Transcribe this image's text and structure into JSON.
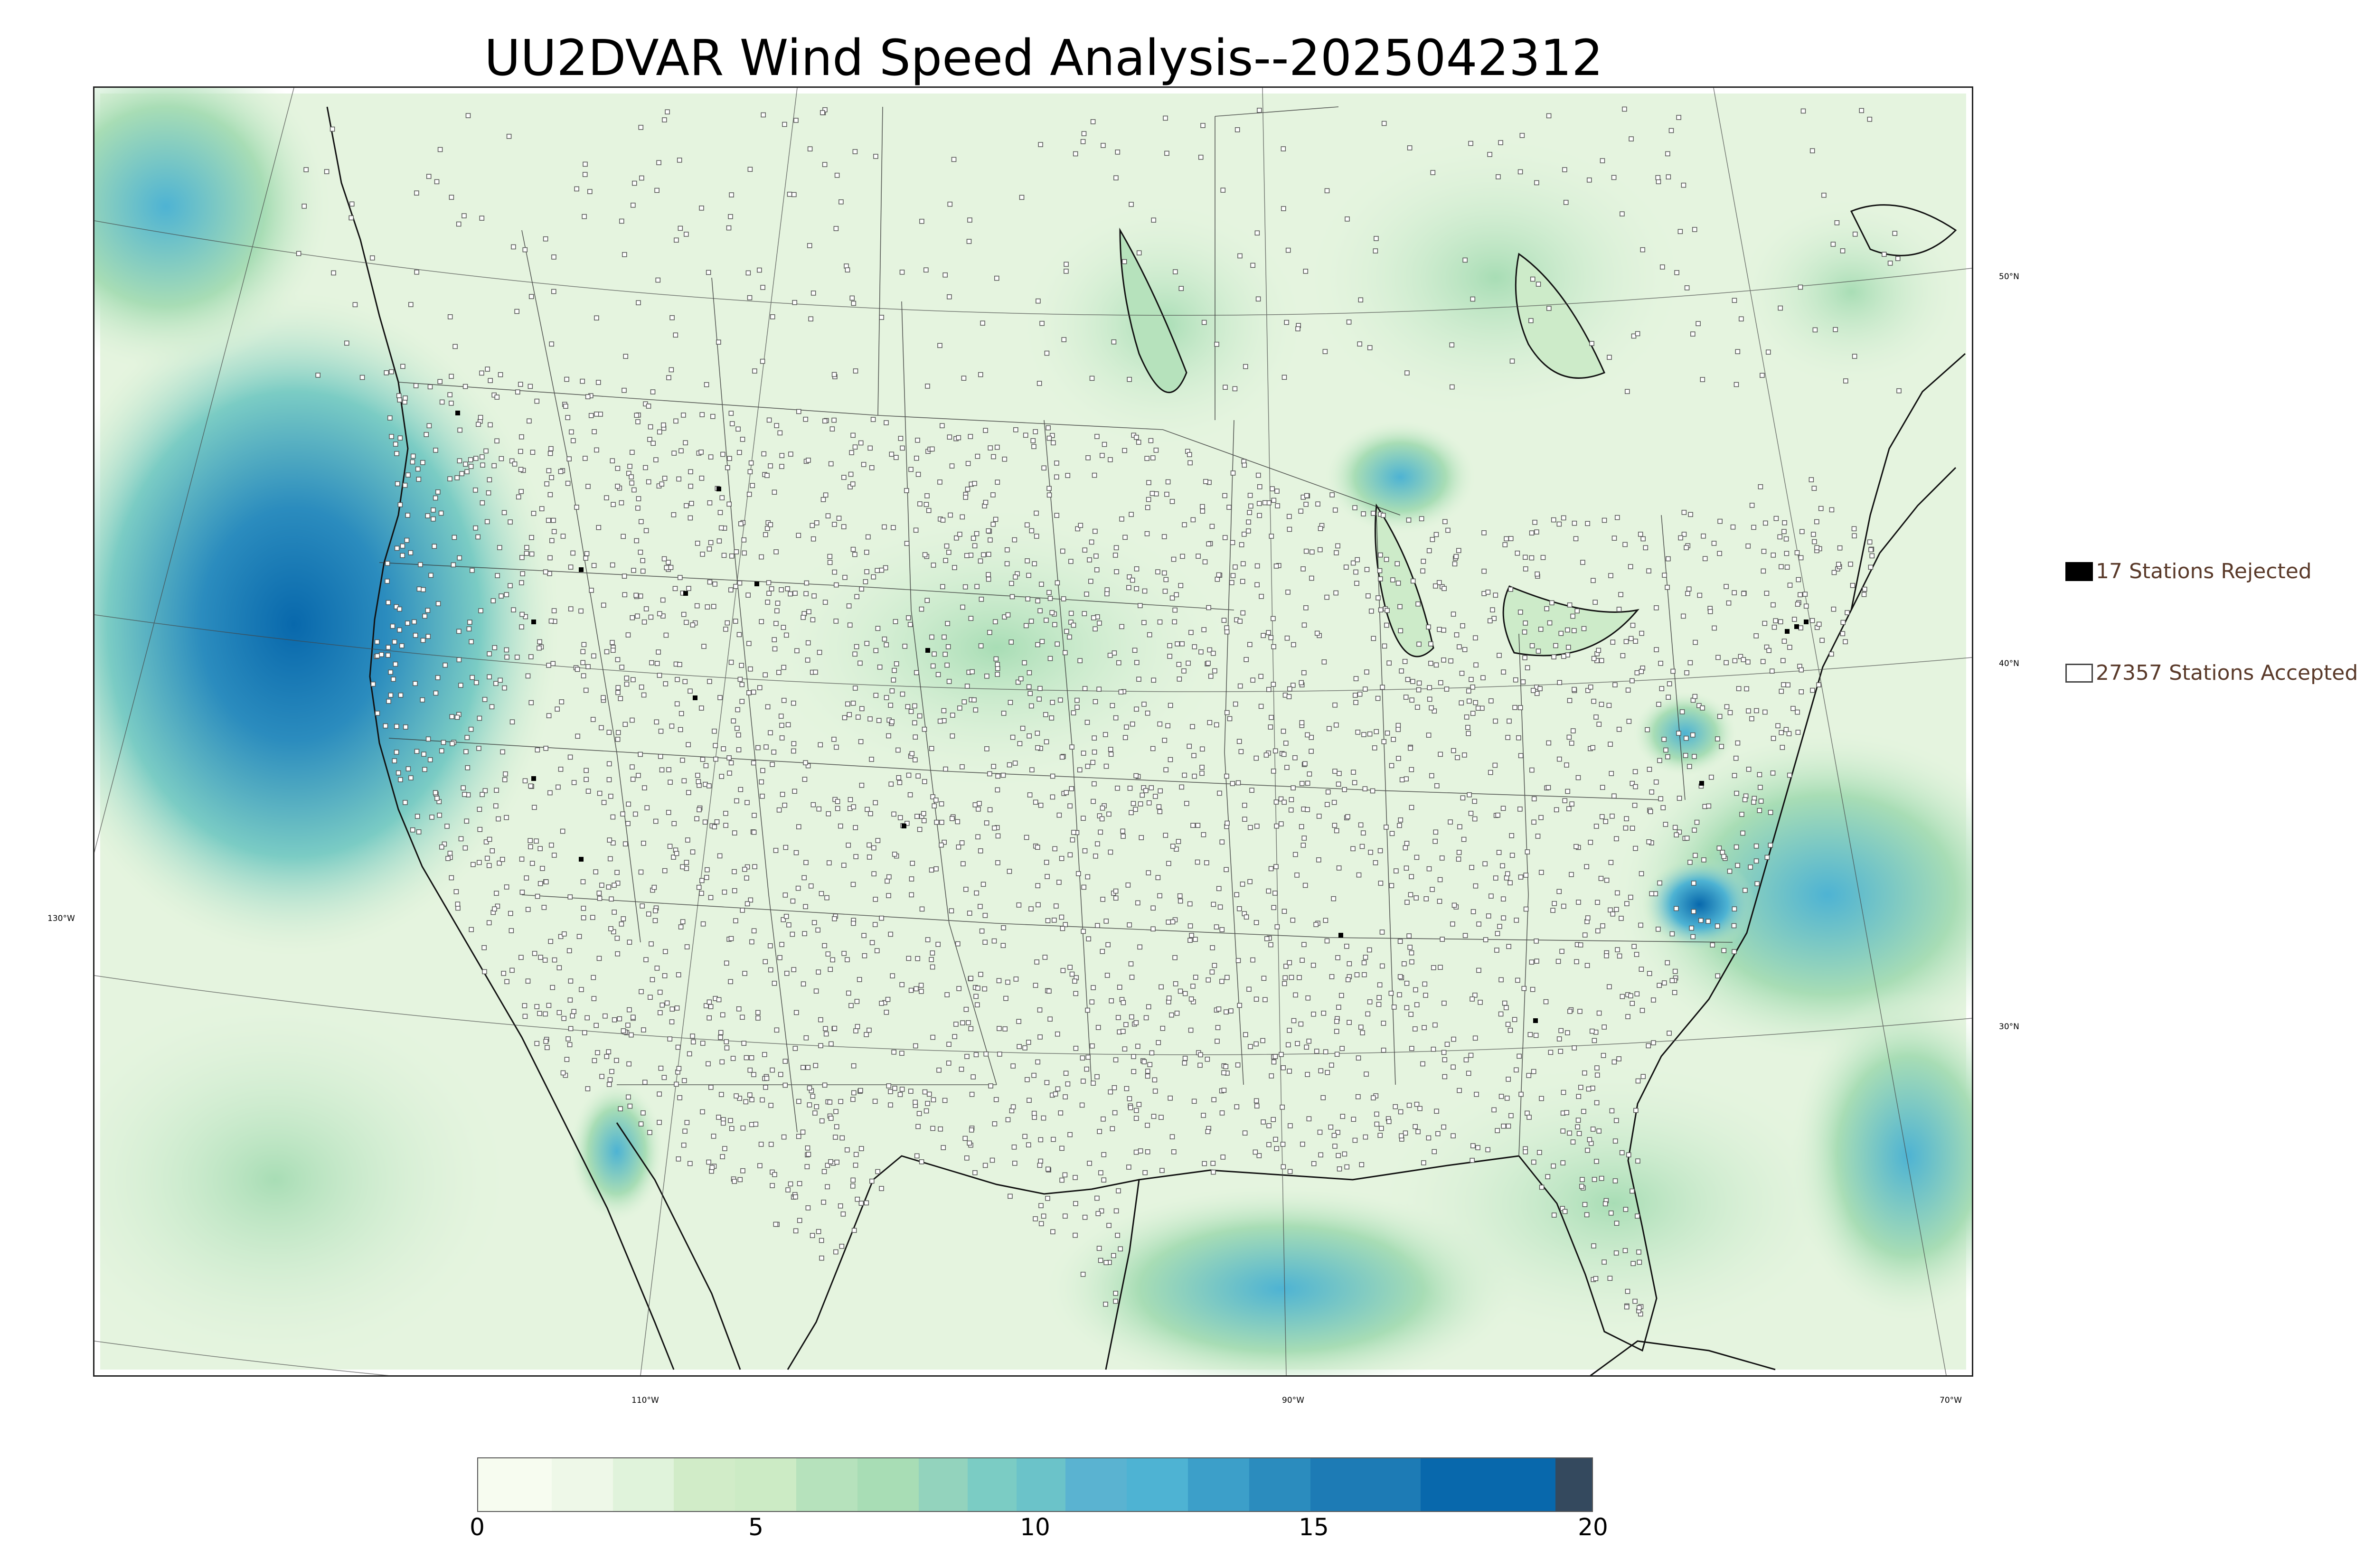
{
  "title": "UU2DVAR Wind Speed Analysis--2025042312",
  "longitude_labels": [
    "130°W",
    "110°W",
    "90°W",
    "70°W"
  ],
  "latitude_labels": [
    "50°N",
    "40°N",
    "30°N"
  ],
  "legend": {
    "rejected": {
      "count": "17",
      "label": "17 Stations Rejected"
    },
    "accepted": {
      "count": "27357",
      "label": "27357 Stations Accepted"
    }
  },
  "colorbar": {
    "ticks": [
      "0",
      "5",
      "10",
      "15",
      "20"
    ],
    "range": [
      0,
      20
    ],
    "colors": [
      "#f7fcf0",
      "#eef8e8",
      "#e0f3db",
      "#d1ecc8",
      "#ccebc5",
      "#b6e2bc",
      "#a8ddb5",
      "#93d3bd",
      "#7bccc4",
      "#6bc3c9",
      "#5ab3d1",
      "#4eb3d3",
      "#3c9fc9",
      "#2b8cbe",
      "#1d7bb5",
      "#0868ac",
      "#34495e"
    ]
  },
  "colors": {
    "land_base": "#e8f5e1",
    "ocean_base": "#d7efd0",
    "strong_wind": "#2b8cbe",
    "station_marker_fill": "#ffffff",
    "station_marker_stroke": "#555555",
    "rejected_marker": "#000000"
  }
}
